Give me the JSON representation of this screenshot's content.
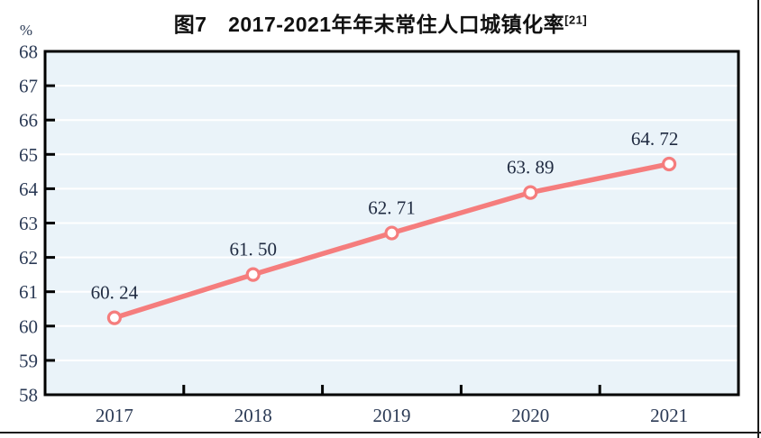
{
  "figure": {
    "title_main": "图7　2017-2021年年末常住人口城镇化率",
    "title_superscript": "[21]"
  },
  "chart_data": {
    "type": "line",
    "title": "图7 2017-2021年年末常住人口城镇化率[21]",
    "categories": [
      "2017",
      "2018",
      "2019",
      "2020",
      "2021"
    ],
    "series": [
      {
        "name": "年末常住人口城镇化率",
        "values": [
          60.24,
          61.5,
          62.71,
          63.89,
          64.72
        ]
      }
    ],
    "point_labels": [
      "60. 24",
      "61. 50",
      "62. 71",
      "63. 89",
      "64. 72"
    ],
    "xlabel": "",
    "ylabel": "%",
    "ylim": [
      58,
      68
    ],
    "ytick_step": 1,
    "grid": true,
    "legend_position": "none"
  },
  "colors": {
    "line": "#F57D7D",
    "marker_fill": "#FFFFFF",
    "marker_stroke": "#F57D7D",
    "plot_background": "#EAF3F9",
    "gridline": "#FFFFFF",
    "plot_border": "#000000",
    "axis_text": "#2B3A55",
    "title_text": "#111111"
  }
}
